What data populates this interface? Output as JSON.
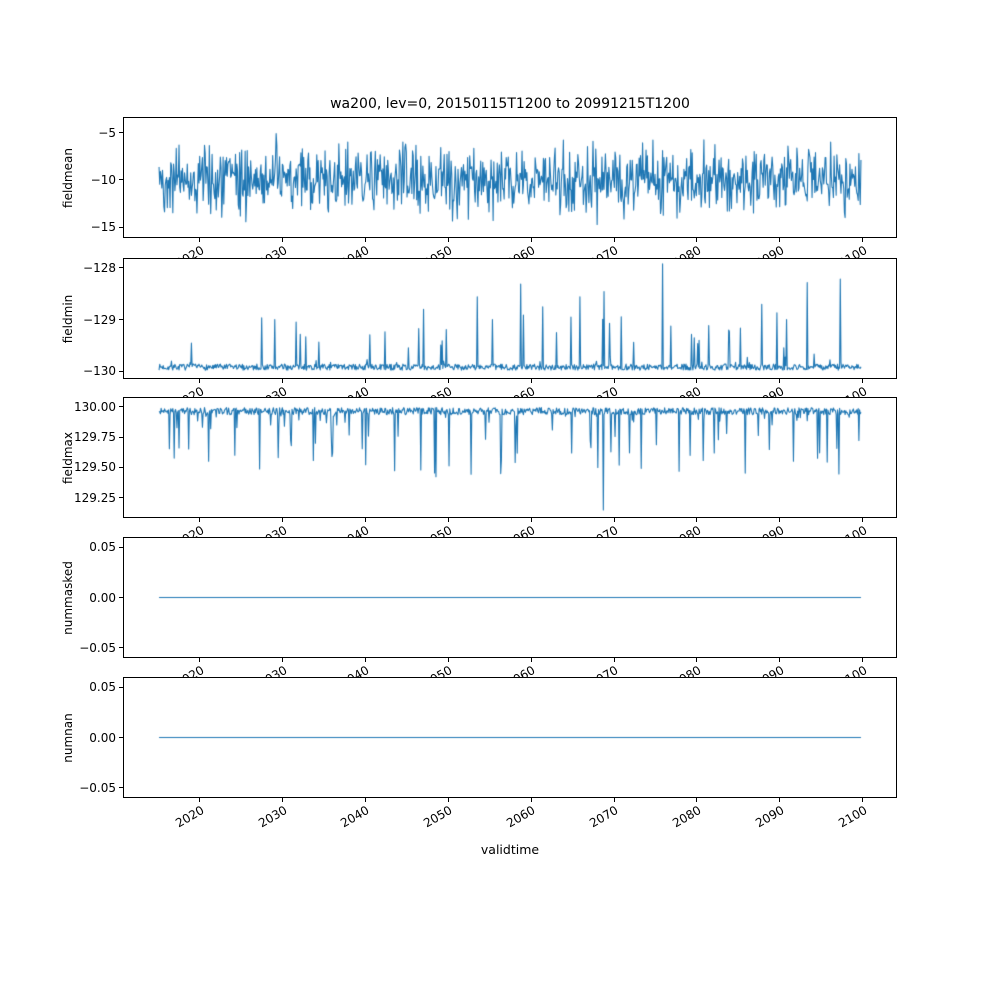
{
  "chart_data": {
    "type": "line",
    "title": "wa200, lev=0, 20150115T1200 to 20991215T1200",
    "xlabel": "validtime",
    "grid": false,
    "legend": "none",
    "line_color": "#1f77b4",
    "x_start": 2015.04,
    "x_end": 2099.96,
    "n_points": 1020,
    "xlim": [
      2010.8,
      2104.2
    ],
    "xticks": [
      2020,
      2030,
      2040,
      2050,
      2060,
      2070,
      2080,
      2090,
      2100
    ],
    "xtick_labels": [
      "2020",
      "2030",
      "2040",
      "2050",
      "2060",
      "2070",
      "2080",
      "2090",
      "2100"
    ],
    "charts": [
      {
        "ylabel": "fieldmean",
        "ylim": [
          -16.17,
          -3.3
        ],
        "yticks": [
          -5,
          -10,
          -15
        ],
        "ytick_labels": [
          "−5",
          "−10",
          "−15"
        ],
        "pattern": "noise",
        "baseline": -10,
        "noise_amp": 3.5,
        "clip_min": -15.3,
        "clip_max": -4.35,
        "seed": 42,
        "description": "noisy monthly series oscillating around -10, roughly between -15 and -4.5"
      },
      {
        "ylabel": "fieldmin",
        "ylim": [
          -130.155,
          -127.806
        ],
        "yticks": [
          -128,
          -129,
          -130
        ],
        "ytick_labels": [
          "−128",
          "−129",
          "−130"
        ],
        "pattern": "spikes-up",
        "baseline": -130,
        "jitter": 0.12,
        "spike_prob": 0.055,
        "spike_amp": 1.0,
        "seed": 7,
        "description": "baseline at -130 with many small upward spikes and occasional large ones",
        "notable_points": [
          {
            "x": 2029.0,
            "y": -129.0
          },
          {
            "x": 2031.6,
            "y": -129.05
          },
          {
            "x": 2040.5,
            "y": -129.3
          },
          {
            "x": 2047.0,
            "y": -128.8
          },
          {
            "x": 2049.8,
            "y": -129.2
          },
          {
            "x": 2053.5,
            "y": -128.55
          },
          {
            "x": 2058.8,
            "y": -128.3
          },
          {
            "x": 2061.5,
            "y": -128.75
          },
          {
            "x": 2066.0,
            "y": -128.55
          },
          {
            "x": 2068.9,
            "y": -128.45
          },
          {
            "x": 2076.0,
            "y": -127.9
          },
          {
            "x": 2088.0,
            "y": -128.7
          },
          {
            "x": 2091.0,
            "y": -129.0
          },
          {
            "x": 2093.5,
            "y": -128.27
          },
          {
            "x": 2097.5,
            "y": -128.2
          }
        ]
      },
      {
        "ylabel": "fieldmax",
        "ylim": [
          129.081,
          130.081
        ],
        "yticks": [
          130.0,
          129.75,
          129.5,
          129.25
        ],
        "ytick_labels": [
          "130.00",
          "129.75",
          "129.50",
          "129.25"
        ],
        "pattern": "spikes-down",
        "baseline": 130,
        "jitter": 0.06,
        "spike_prob": 0.08,
        "spike_amp": 0.5,
        "seed": 11,
        "description": "baseline at 130.00 with many small downward spikes, deepest near 2069",
        "notable_points": [
          {
            "x": 2021.0,
            "y": 129.55
          },
          {
            "x": 2024.2,
            "y": 129.6
          },
          {
            "x": 2031.0,
            "y": 129.68
          },
          {
            "x": 2036.0,
            "y": 129.62
          },
          {
            "x": 2040.0,
            "y": 129.52
          },
          {
            "x": 2043.5,
            "y": 129.47
          },
          {
            "x": 2048.5,
            "y": 129.42
          },
          {
            "x": 2052.8,
            "y": 129.44
          },
          {
            "x": 2068.8,
            "y": 129.14
          },
          {
            "x": 2072.0,
            "y": 129.62
          },
          {
            "x": 2086.0,
            "y": 129.45
          },
          {
            "x": 2091.8,
            "y": 129.55
          },
          {
            "x": 2095.0,
            "y": 129.62
          }
        ]
      },
      {
        "ylabel": "nummasked",
        "ylim": [
          -0.06,
          0.06
        ],
        "yticks": [
          0.05,
          0.0,
          -0.05
        ],
        "ytick_labels": [
          "0.05",
          "0.00",
          "−0.05"
        ],
        "pattern": "constant",
        "value": 0,
        "seed": 1,
        "description": "constant zero line"
      },
      {
        "ylabel": "numnan",
        "ylim": [
          -0.06,
          0.06
        ],
        "yticks": [
          0.05,
          0.0,
          -0.05
        ],
        "ytick_labels": [
          "0.05",
          "0.00",
          "−0.05"
        ],
        "pattern": "constant",
        "value": 0,
        "seed": 2,
        "description": "constant zero line"
      }
    ]
  }
}
